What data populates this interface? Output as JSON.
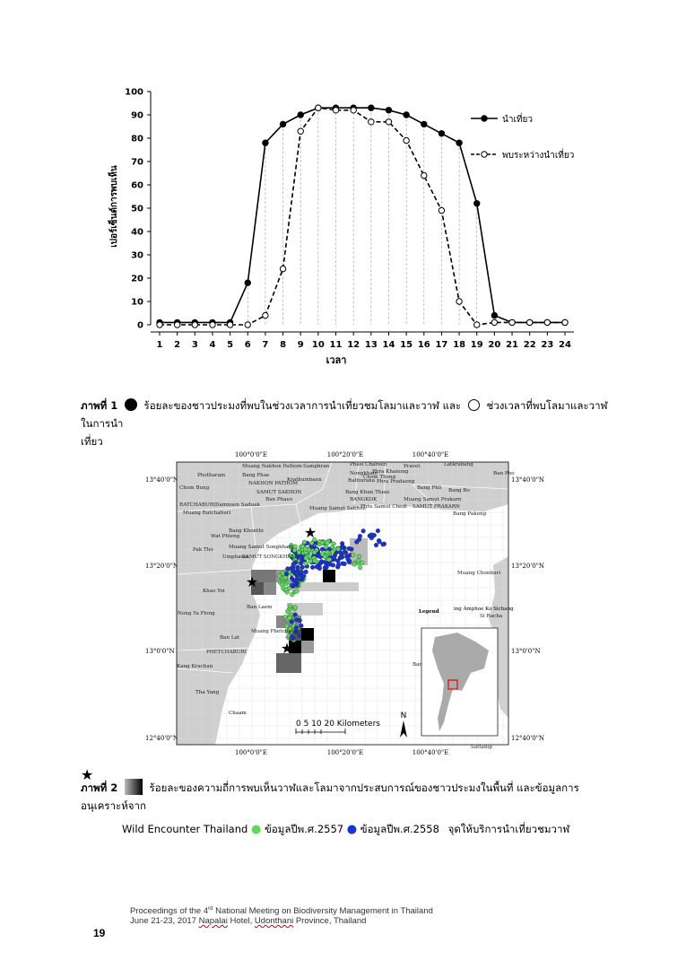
{
  "chart_data": {
    "type": "line",
    "x": [
      1,
      2,
      3,
      4,
      5,
      6,
      7,
      8,
      9,
      10,
      11,
      12,
      13,
      14,
      15,
      16,
      17,
      18,
      19,
      20,
      21,
      22,
      23,
      24
    ],
    "series": [
      {
        "name": "นำเที่ยว",
        "style": "solid-filled",
        "values": [
          1,
          1,
          1,
          1,
          1,
          18,
          78,
          86,
          90,
          93,
          93,
          93,
          93,
          92,
          90,
          86,
          82,
          78,
          52,
          4,
          1,
          1,
          1,
          1
        ]
      },
      {
        "name": "พบระหว่างนำเที่ยว",
        "style": "dashed-open",
        "values": [
          0,
          0,
          0,
          0,
          0,
          0,
          4,
          24,
          83,
          93,
          92,
          92,
          87,
          87,
          79,
          64,
          49,
          10,
          0,
          1,
          1,
          1,
          1,
          1
        ]
      }
    ],
    "xlabel": "เวลา",
    "ylabel": "เปอร์เซ็นต์การพบเห็น",
    "ylim": [
      0,
      100
    ],
    "yticks": [
      0,
      10,
      20,
      30,
      40,
      50,
      60,
      70,
      80,
      90,
      100
    ],
    "legend": "right"
  },
  "caption1": {
    "label": "ภาพที่ 1",
    "text_a": "ร้อยละของชาวประมงที่พบในช่วงเวลาการนำเที่ยวชมโลมาและวาฬ และ",
    "text_b": "ช่วงเวลาที่พบโลมาและวาฬในการนำ",
    "text_c": "เที่ยว"
  },
  "map": {
    "lon_labels": [
      "100°0'0\"E",
      "100°20'0\"E",
      "100°40'0\"E"
    ],
    "lat_labels": [
      "13°40'0\"N",
      "13°20'0\"N",
      "13°0'0\"N",
      "12°40'0\"N"
    ],
    "places": [
      "Muang Nakhon Pathom",
      "Samphran",
      "Phasi Charoen",
      "Pravet",
      "Latkrabang",
      "Ban Pho",
      "Photharam",
      "Bang Phae",
      "Nongkham",
      "Phra Khanong",
      "NAKHON PATHOM",
      "Krathumbaen",
      "Chom Bung",
      "Ratburana",
      "Phra Pradaeng",
      "Chom Thong",
      "Bang Phli",
      "Bang Bo",
      "SAMUT SAKHON",
      "Bang Khun Thian",
      "BANGKOK",
      "RATCHABURI",
      "Damnoen Saduak",
      "Ban Phaeo",
      "Muang Samut Prakarn",
      "Muang Ratchaburi",
      "Muang Samut Sakhon",
      "Phra Samut Chedi",
      "SAMUT PRAKARN",
      "Bang Pakong",
      "Bang Khonthi",
      "Wat Phleng",
      "Pak Tho",
      "Muang Samut Songkham",
      "Umphawa",
      "SAMUT SONGKHAM",
      "Muang Chonburi",
      "Khao Yoi",
      "Ban Laem",
      "Nong Ya Plong",
      "Muang Phetchaburi",
      "Ban Lat",
      "PHETCHABURI",
      "Kang Krachan",
      "Tha Yang",
      "Chaam",
      "Ban Bueng",
      "Si Racha",
      "Sattahip"
    ],
    "legend_label": "Legend",
    "legend_text": "ing Amphoe Ko Sichang",
    "scale_numbers": "0  5 10      20 Kilometers",
    "north": "N"
  },
  "caption2": {
    "label": "ภาพที่ 2",
    "text_a": "ร้อยละของความถี่การพบเห็นวาฬและโลมาจากประสบการณ์ของชาวประมงในพื้นที่ และข้อมูลการอนุเคราะห์จาก",
    "text_b": "Wild Encounter Thailand",
    "g_label": "ข้อมูลปีพ.ศ.2557",
    "b_label": "ข้อมูลปีพ.ศ.2558",
    "star_label": "จุดให้บริการนำเที่ยวชมวาฬ"
  },
  "footer": {
    "line1_a": "Proceedings of the 4",
    "line1_sup": "rd",
    "line1_b": " National Meeting on Biodiversity Management in Thailand",
    "line2_a": "June 21-23, 2017 ",
    "line2_hotel": "Napalai",
    "line2_b": " Hotel, ",
    "line2_city": "Udonthani",
    "line2_c": " Province, Thailand",
    "page_number": "19"
  },
  "colors": {
    "green_dot": "#5fd85f",
    "blue_dot": "#1a35cc",
    "land": "#cfcfcf",
    "sea": "#ffffff"
  }
}
